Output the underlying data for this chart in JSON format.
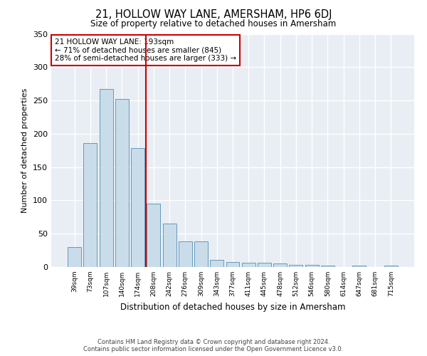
{
  "title": "21, HOLLOW WAY LANE, AMERSHAM, HP6 6DJ",
  "subtitle": "Size of property relative to detached houses in Amersham",
  "xlabel": "Distribution of detached houses by size in Amersham",
  "ylabel": "Number of detached properties",
  "categories": [
    "39sqm",
    "73sqm",
    "107sqm",
    "140sqm",
    "174sqm",
    "208sqm",
    "242sqm",
    "276sqm",
    "309sqm",
    "343sqm",
    "377sqm",
    "411sqm",
    "445sqm",
    "478sqm",
    "512sqm",
    "546sqm",
    "580sqm",
    "614sqm",
    "647sqm",
    "681sqm",
    "715sqm"
  ],
  "values": [
    30,
    186,
    267,
    252,
    178,
    95,
    65,
    39,
    39,
    11,
    8,
    6,
    6,
    5,
    3,
    3,
    2,
    0,
    2,
    0,
    2
  ],
  "bar_color": "#c9dcea",
  "bar_edge_color": "#6699bb",
  "vline_x": 4.5,
  "vline_color": "#cc0000",
  "annotation_line1": "21 HOLLOW WAY LANE: 193sqm",
  "annotation_line2": "← 71% of detached houses are smaller (845)",
  "annotation_line3": "28% of semi-detached houses are larger (333) →",
  "annotation_box_edgecolor": "#cc0000",
  "ylim": [
    0,
    350
  ],
  "yticks": [
    0,
    50,
    100,
    150,
    200,
    250,
    300,
    350
  ],
  "background_color": "#e8eef4",
  "grid_color": "#ffffff",
  "footer_line1": "Contains HM Land Registry data © Crown copyright and database right 2024.",
  "footer_line2": "Contains public sector information licensed under the Open Government Licence v3.0."
}
